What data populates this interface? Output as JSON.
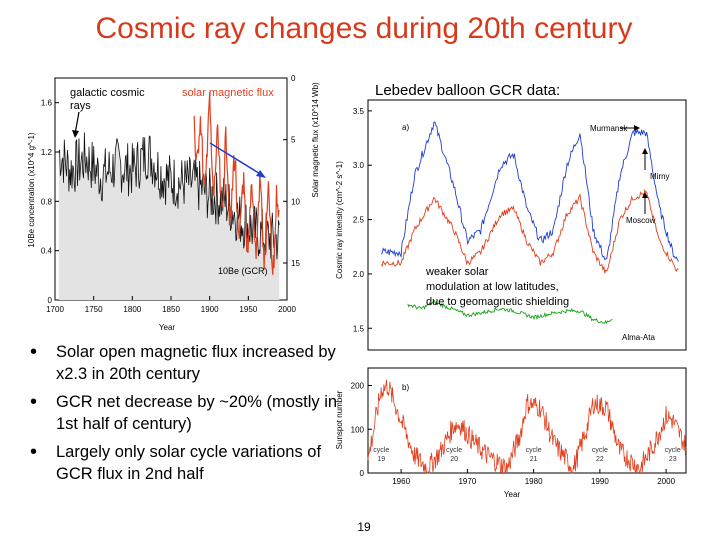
{
  "title": "Cosmic ray changes during 20th century",
  "subheading": "Lebedev balloon GCR data:",
  "bullets": [
    "Solar open magnetic flux increased by x2.3 in 20th century",
    "GCR net decrease by ~20% (mostly in 1st half of century)",
    "Largely only solar cycle variations of GCR flux in 2nd half"
  ],
  "page_number": "19",
  "colors": {
    "title": "#d9391b",
    "blue": "#1f3fd0",
    "red": "#e0401f",
    "green": "#18a318",
    "fill": "#e3e3e3"
  },
  "chart_data": [
    {
      "type": "line",
      "xlabel": "Year",
      "ylabel_left": "10Be concentration (x10^4 g^-1)",
      "ylabel_right": "Solar magnetic flux (x10^14 Wb)",
      "x_ticks": [
        1700,
        1750,
        1800,
        1850,
        1900,
        1950,
        2000
      ],
      "y_ticks_left": [
        0,
        0.4,
        0.8,
        1.2,
        1.6
      ],
      "y_ticks_right": [
        0,
        5,
        10,
        15
      ],
      "xlim": [
        1700,
        2000
      ],
      "ylim_left": [
        0,
        1.8
      ],
      "ylim_right_inverted": [
        0,
        18
      ],
      "annotations": [
        "galactic cosmic rays",
        "solar magnetic flux",
        "10Be (GCR)"
      ],
      "series": [
        {
          "name": "10Be (GCR)",
          "axis": "left",
          "x": [
            1705,
            1720,
            1740,
            1760,
            1780,
            1800,
            1820,
            1840,
            1860,
            1880,
            1900,
            1920,
            1940,
            1960,
            1980,
            1990
          ],
          "values": [
            1.2,
            1.05,
            1.15,
            1.0,
            1.1,
            1.05,
            1.2,
            1.0,
            0.95,
            0.95,
            0.85,
            0.8,
            0.65,
            0.55,
            0.5,
            0.5
          ]
        },
        {
          "name": "solar magnetic flux",
          "axis": "right",
          "x": [
            1880,
            1890,
            1900,
            1910,
            1920,
            1930,
            1940,
            1950,
            1960,
            1970,
            1980,
            1990
          ],
          "values": [
            3,
            7,
            5,
            8,
            8,
            9,
            11,
            12,
            11,
            12,
            13,
            12
          ]
        }
      ]
    },
    {
      "type": "line",
      "panel_label": "a)",
      "ylabel": "Cosmic ray intensity (cm^-2 s^-1)",
      "y_ticks": [
        1.5,
        2.0,
        2.5,
        3.0,
        3.5
      ],
      "ylim": [
        1.3,
        3.6
      ],
      "xlim": [
        1955,
        2003
      ],
      "station_labels": [
        "Murmansk",
        "Mirny",
        "Moscow",
        "Alma-Ata"
      ],
      "annotation": "weaker solar modulation at low latitudes, due to geomagnetic shielding",
      "series": [
        {
          "name": "Murmansk / Mirny",
          "x": [
            1957,
            1960,
            1962,
            1965,
            1968,
            1970,
            1972,
            1975,
            1977,
            1979,
            1981,
            1983,
            1985,
            1987,
            1989,
            1991,
            1993,
            1995,
            1997,
            1999,
            2001,
            2002
          ],
          "values": [
            2.2,
            2.2,
            2.9,
            3.4,
            2.8,
            2.3,
            2.4,
            3.0,
            3.1,
            2.6,
            2.3,
            2.4,
            3.0,
            3.3,
            2.4,
            2.1,
            2.9,
            3.3,
            3.3,
            2.6,
            2.2,
            2.1
          ]
        },
        {
          "name": "Moscow",
          "x": [
            1957,
            1960,
            1962,
            1965,
            1968,
            1970,
            1972,
            1975,
            1977,
            1979,
            1981,
            1983,
            1985,
            1987,
            1989,
            1991,
            1993,
            1995,
            1997,
            1999,
            2001,
            2002
          ],
          "values": [
            2.1,
            2.1,
            2.4,
            2.7,
            2.4,
            2.1,
            2.2,
            2.55,
            2.6,
            2.3,
            2.1,
            2.2,
            2.55,
            2.7,
            2.2,
            2.0,
            2.5,
            2.7,
            2.75,
            2.3,
            2.1,
            2.0
          ]
        },
        {
          "name": "Alma-Ata",
          "x": [
            1961,
            1963,
            1965,
            1968,
            1970,
            1972,
            1975,
            1977,
            1980,
            1983,
            1985,
            1987,
            1989,
            1991,
            1992
          ],
          "values": [
            1.72,
            1.68,
            1.74,
            1.67,
            1.62,
            1.64,
            1.68,
            1.66,
            1.6,
            1.64,
            1.66,
            1.66,
            1.58,
            1.55,
            1.6
          ]
        }
      ]
    },
    {
      "type": "line",
      "panel_label": "b)",
      "ylabel": "Sunspot number",
      "xlabel": "Year",
      "x_ticks": [
        1960,
        1970,
        1980,
        1990,
        2000
      ],
      "y_ticks": [
        0,
        100,
        200
      ],
      "ylim": [
        0,
        240
      ],
      "xlim": [
        1955,
        2003
      ],
      "cycle_labels": [
        {
          "label": "cycle 19",
          "x": 1957
        },
        {
          "label": "cycle 20",
          "x": 1968
        },
        {
          "label": "cycle 21",
          "x": 1980
        },
        {
          "label": "cycle 22",
          "x": 1990
        },
        {
          "label": "cycle 23",
          "x": 2001
        }
      ],
      "series": [
        {
          "name": "Sunspot number",
          "x": [
            1955,
            1957,
            1958,
            1960,
            1962,
            1964,
            1966,
            1968,
            1969,
            1971,
            1973,
            1976,
            1978,
            1979,
            1981,
            1983,
            1986,
            1988,
            1989,
            1991,
            1993,
            1996,
            1998,
            2000,
            2001,
            2003
          ],
          "values": [
            30,
            190,
            200,
            120,
            40,
            10,
            50,
            110,
            110,
            70,
            40,
            10,
            90,
            160,
            150,
            70,
            10,
            100,
            160,
            150,
            50,
            10,
            60,
            130,
            120,
            60
          ]
        }
      ]
    }
  ]
}
